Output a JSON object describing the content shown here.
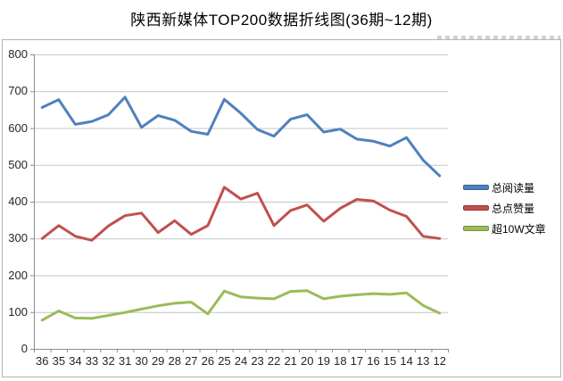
{
  "title": "陕西新媒体TOP200数据折线图(36期~12期)",
  "colors": {
    "frame_border": "#b3b3b3",
    "gridline": "#c6c6c6",
    "axis": "#8c8c8c",
    "text": "#262626",
    "background": "#ffffff"
  },
  "legend": {
    "position": "right",
    "items": [
      "总阅读量",
      "总点赞量",
      "超10W文章"
    ]
  },
  "chart_data": {
    "type": "line",
    "title": "陕西新媒体TOP200数据折线图(36期~12期)",
    "xlabel": "",
    "ylabel": "",
    "ylim": [
      0,
      800
    ],
    "y_ticks": [
      800,
      700,
      600,
      500,
      400,
      300,
      200,
      100,
      0
    ],
    "grid": true,
    "legend_position": "right",
    "categories": [
      "36",
      "35",
      "34",
      "33",
      "32",
      "31",
      "30",
      "29",
      "28",
      "27",
      "26",
      "25",
      "24",
      "23",
      "22",
      "21",
      "20",
      "19",
      "18",
      "17",
      "16",
      "15",
      "14",
      "13",
      "12"
    ],
    "series": [
      {
        "name": "总阅读量",
        "color": "#4f81bd",
        "edge": "#3a6591",
        "values": [
          656,
          677,
          610,
          618,
          636,
          684,
          602,
          634,
          621,
          591,
          583,
          678,
          640,
          596,
          578,
          624,
          636,
          589,
          597,
          570,
          564,
          551,
          574,
          513,
          470
        ]
      },
      {
        "name": "总点赞量",
        "color": "#c0504d",
        "edge": "#953735",
        "values": [
          300,
          335,
          306,
          295,
          334,
          362,
          369,
          316,
          348,
          311,
          335,
          439,
          407,
          423,
          335,
          376,
          391,
          347,
          382,
          406,
          402,
          377,
          360,
          306,
          300
        ]
      },
      {
        "name": "超10W文章",
        "color": "#9bbb59",
        "edge": "#77933c",
        "values": [
          78,
          103,
          84,
          83,
          91,
          99,
          108,
          117,
          124,
          127,
          95,
          157,
          141,
          138,
          136,
          156,
          158,
          136,
          143,
          147,
          150,
          148,
          152,
          118,
          97
        ]
      }
    ]
  }
}
